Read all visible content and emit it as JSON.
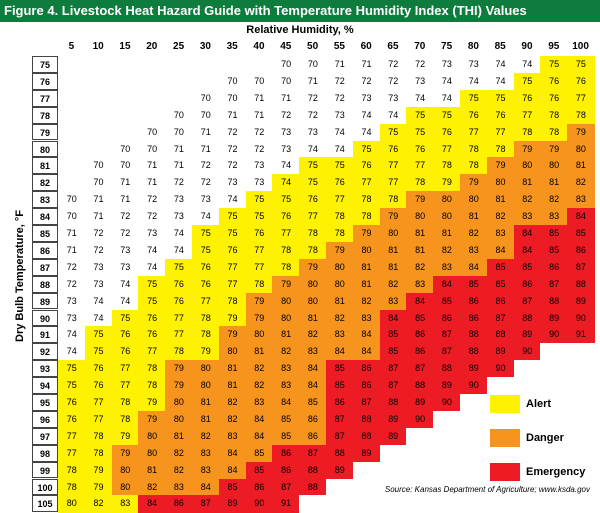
{
  "title": "Figure 4. Livestock Heat Hazard Guide with Temperature Humidity Index (THI) Values",
  "x_axis_label": "Relative Humidity, %",
  "y_axis_label": "Dry Bulb Temperature, °F",
  "source": "Source: Kansas Department of Agriculture; www.ksda.gov",
  "colors": {
    "none": "#ffffff",
    "alert": "#fff200",
    "danger": "#f7941d",
    "emergency": "#ed1c24"
  },
  "legend": [
    {
      "label": "Alert",
      "key": "alert"
    },
    {
      "label": "Danger",
      "key": "danger"
    },
    {
      "label": "Emergency",
      "key": "emergency"
    }
  ],
  "humidity": [
    "5",
    "10",
    "15",
    "20",
    "25",
    "30",
    "35",
    "40",
    "45",
    "50",
    "55",
    "60",
    "65",
    "70",
    "75",
    "80",
    "85",
    "90",
    "95",
    "100"
  ],
  "rows": [
    {
      "t": "75",
      "v": [
        "",
        "",
        "",
        "",
        "",
        "",
        "",
        "",
        "70",
        "70",
        "71",
        "71",
        "72",
        "72",
        "73",
        "73",
        "74",
        "74",
        "75",
        "75"
      ],
      "c": "nnnnnnnnnnnnnnnnnnaa"
    },
    {
      "t": "76",
      "v": [
        "",
        "",
        "",
        "",
        "",
        "",
        "70",
        "70",
        "70",
        "71",
        "72",
        "72",
        "72",
        "73",
        "74",
        "74",
        "74",
        "75",
        "76",
        "76"
      ],
      "c": "nnnnnnnnnnnnnnnnnaaa"
    },
    {
      "t": "77",
      "v": [
        "",
        "",
        "",
        "",
        "",
        "70",
        "70",
        "71",
        "71",
        "72",
        "72",
        "73",
        "73",
        "74",
        "74",
        "75",
        "75",
        "76",
        "76",
        "77"
      ],
      "c": "nnnnnnnnnnnnnnnaaaaa"
    },
    {
      "t": "78",
      "v": [
        "",
        "",
        "",
        "",
        "70",
        "70",
        "71",
        "71",
        "72",
        "72",
        "73",
        "74",
        "74",
        "75",
        "75",
        "76",
        "76",
        "77",
        "78",
        "78"
      ],
      "c": "nnnnnnnnnnnnnaaaaaaa"
    },
    {
      "t": "79",
      "v": [
        "",
        "",
        "",
        "70",
        "70",
        "71",
        "72",
        "72",
        "73",
        "73",
        "74",
        "74",
        "75",
        "75",
        "76",
        "77",
        "77",
        "78",
        "78",
        "79"
      ],
      "c": "nnnnnnnnnnnnaaaaaaad"
    },
    {
      "t": "80",
      "v": [
        "",
        "",
        "70",
        "70",
        "71",
        "71",
        "72",
        "72",
        "73",
        "74",
        "74",
        "75",
        "76",
        "76",
        "77",
        "78",
        "78",
        "79",
        "79",
        "80"
      ],
      "c": "nnnnnnnnnnnaaaaaaddd"
    },
    {
      "t": "81",
      "v": [
        "",
        "70",
        "70",
        "71",
        "71",
        "72",
        "72",
        "73",
        "74",
        "75",
        "75",
        "76",
        "77",
        "77",
        "78",
        "78",
        "79",
        "80",
        "80",
        "81"
      ],
      "c": "nnnnnnnnnaaaaaaadddd"
    },
    {
      "t": "82",
      "v": [
        "",
        "70",
        "71",
        "71",
        "72",
        "72",
        "73",
        "73",
        "74",
        "75",
        "76",
        "77",
        "77",
        "78",
        "79",
        "79",
        "80",
        "81",
        "81",
        "82"
      ],
      "c": "nnnnnnnnaaaaaaaddddd"
    },
    {
      "t": "83",
      "v": [
        "70",
        "71",
        "71",
        "72",
        "73",
        "73",
        "74",
        "75",
        "75",
        "76",
        "77",
        "78",
        "78",
        "79",
        "80",
        "80",
        "81",
        "82",
        "82",
        "83"
      ],
      "c": "nnnnnnnaaaaaaddddddd"
    },
    {
      "t": "84",
      "v": [
        "70",
        "71",
        "72",
        "72",
        "73",
        "74",
        "75",
        "75",
        "76",
        "77",
        "78",
        "78",
        "79",
        "80",
        "80",
        "81",
        "82",
        "83",
        "83",
        "84"
      ],
      "c": "nnnnnnaaaaaaddddddde"
    },
    {
      "t": "85",
      "v": [
        "71",
        "72",
        "72",
        "73",
        "74",
        "75",
        "75",
        "76",
        "77",
        "78",
        "78",
        "79",
        "80",
        "81",
        "81",
        "82",
        "83",
        "84",
        "85",
        "85"
      ],
      "c": "nnnnnaaaaaaddddddeee"
    },
    {
      "t": "86",
      "v": [
        "71",
        "72",
        "73",
        "74",
        "74",
        "75",
        "76",
        "77",
        "78",
        "78",
        "79",
        "80",
        "81",
        "81",
        "82",
        "83",
        "84",
        "84",
        "85",
        "86"
      ],
      "c": "nnnnnaaaaadddddddeee"
    },
    {
      "t": "87",
      "v": [
        "72",
        "73",
        "73",
        "74",
        "75",
        "76",
        "77",
        "77",
        "78",
        "79",
        "80",
        "81",
        "81",
        "82",
        "83",
        "84",
        "85",
        "85",
        "86",
        "87"
      ],
      "c": "nnnnaaaaadddddddeeee"
    },
    {
      "t": "88",
      "v": [
        "72",
        "73",
        "74",
        "75",
        "76",
        "76",
        "77",
        "78",
        "79",
        "80",
        "80",
        "81",
        "82",
        "83",
        "84",
        "85",
        "85",
        "86",
        "87",
        "88"
      ],
      "c": "nnnaaaaaddddddeeeeee"
    },
    {
      "t": "89",
      "v": [
        "73",
        "74",
        "74",
        "75",
        "76",
        "77",
        "78",
        "79",
        "80",
        "80",
        "81",
        "82",
        "83",
        "84",
        "85",
        "86",
        "86",
        "87",
        "88",
        "89"
      ],
      "c": "nnnaaaaddddddeeeeeee"
    },
    {
      "t": "90",
      "v": [
        "73",
        "74",
        "75",
        "76",
        "77",
        "78",
        "79",
        "79",
        "80",
        "81",
        "82",
        "83",
        "84",
        "85",
        "86",
        "86",
        "87",
        "88",
        "89",
        "90"
      ],
      "c": "nnaaaaadddddeeeeeeee"
    },
    {
      "t": "91",
      "v": [
        "74",
        "75",
        "76",
        "76",
        "77",
        "78",
        "79",
        "80",
        "81",
        "82",
        "83",
        "84",
        "85",
        "86",
        "87",
        "88",
        "88",
        "89",
        "90",
        "91"
      ],
      "c": "naaaaaddddddeeeeeeee"
    },
    {
      "t": "92",
      "v": [
        "74",
        "75",
        "76",
        "77",
        "78",
        "79",
        "80",
        "81",
        "82",
        "83",
        "84",
        "84",
        "85",
        "86",
        "87",
        "88",
        "89",
        "90",
        "",
        ""
      ],
      "c": "naaaaaddddddeeeeeenn"
    },
    {
      "t": "93",
      "v": [
        "75",
        "76",
        "77",
        "78",
        "79",
        "80",
        "81",
        "82",
        "83",
        "84",
        "85",
        "86",
        "87",
        "87",
        "88",
        "89",
        "90",
        "",
        "",
        ""
      ],
      "c": "aaaaddddddeeeeeeennn"
    },
    {
      "t": "94",
      "v": [
        "75",
        "76",
        "77",
        "78",
        "79",
        "80",
        "81",
        "82",
        "83",
        "84",
        "85",
        "86",
        "87",
        "88",
        "89",
        "90",
        "",
        "",
        "",
        ""
      ],
      "c": "aaaaddddddeeeeeennnn"
    },
    {
      "t": "95",
      "v": [
        "76",
        "77",
        "78",
        "79",
        "80",
        "81",
        "82",
        "83",
        "84",
        "85",
        "86",
        "87",
        "88",
        "89",
        "90",
        "",
        "",
        "",
        "",
        ""
      ],
      "c": "aaaaddddddeeeeennnnn"
    },
    {
      "t": "96",
      "v": [
        "76",
        "77",
        "78",
        "79",
        "80",
        "81",
        "82",
        "84",
        "85",
        "86",
        "87",
        "88",
        "89",
        "90",
        "",
        "",
        "",
        "",
        "",
        ""
      ],
      "c": "aaadddddddeeeennnnnn"
    },
    {
      "t": "97",
      "v": [
        "77",
        "78",
        "79",
        "80",
        "81",
        "82",
        "83",
        "84",
        "85",
        "86",
        "87",
        "88",
        "89",
        "",
        "",
        "",
        "",
        "",
        "",
        ""
      ],
      "c": "aaadddddddeeennnnnnn"
    },
    {
      "t": "98",
      "v": [
        "77",
        "78",
        "79",
        "80",
        "82",
        "83",
        "84",
        "85",
        "86",
        "87",
        "88",
        "89",
        "",
        "",
        "",
        "",
        "",
        "",
        "",
        ""
      ],
      "c": "aaddddddeeeennnnnnnn"
    },
    {
      "t": "99",
      "v": [
        "78",
        "79",
        "80",
        "81",
        "82",
        "83",
        "84",
        "85",
        "86",
        "88",
        "89",
        "",
        "",
        "",
        "",
        "",
        "",
        "",
        "",
        ""
      ],
      "c": "aadddddeeeennnnnnnnn"
    },
    {
      "t": "100",
      "v": [
        "78",
        "79",
        "80",
        "82",
        "83",
        "84",
        "85",
        "86",
        "87",
        "88",
        "",
        "",
        "",
        "",
        "",
        "",
        "",
        "",
        "",
        ""
      ],
      "c": "aaddddeeeennnnnnnnnn"
    },
    {
      "t": "105",
      "v": [
        "80",
        "82",
        "83",
        "84",
        "86",
        "87",
        "89",
        "90",
        "91",
        "",
        "",
        "",
        "",
        "",
        "",
        "",
        "",
        "",
        "",
        ""
      ],
      "c": "aaaeeeeeennnnnnnnnnn"
    }
  ]
}
